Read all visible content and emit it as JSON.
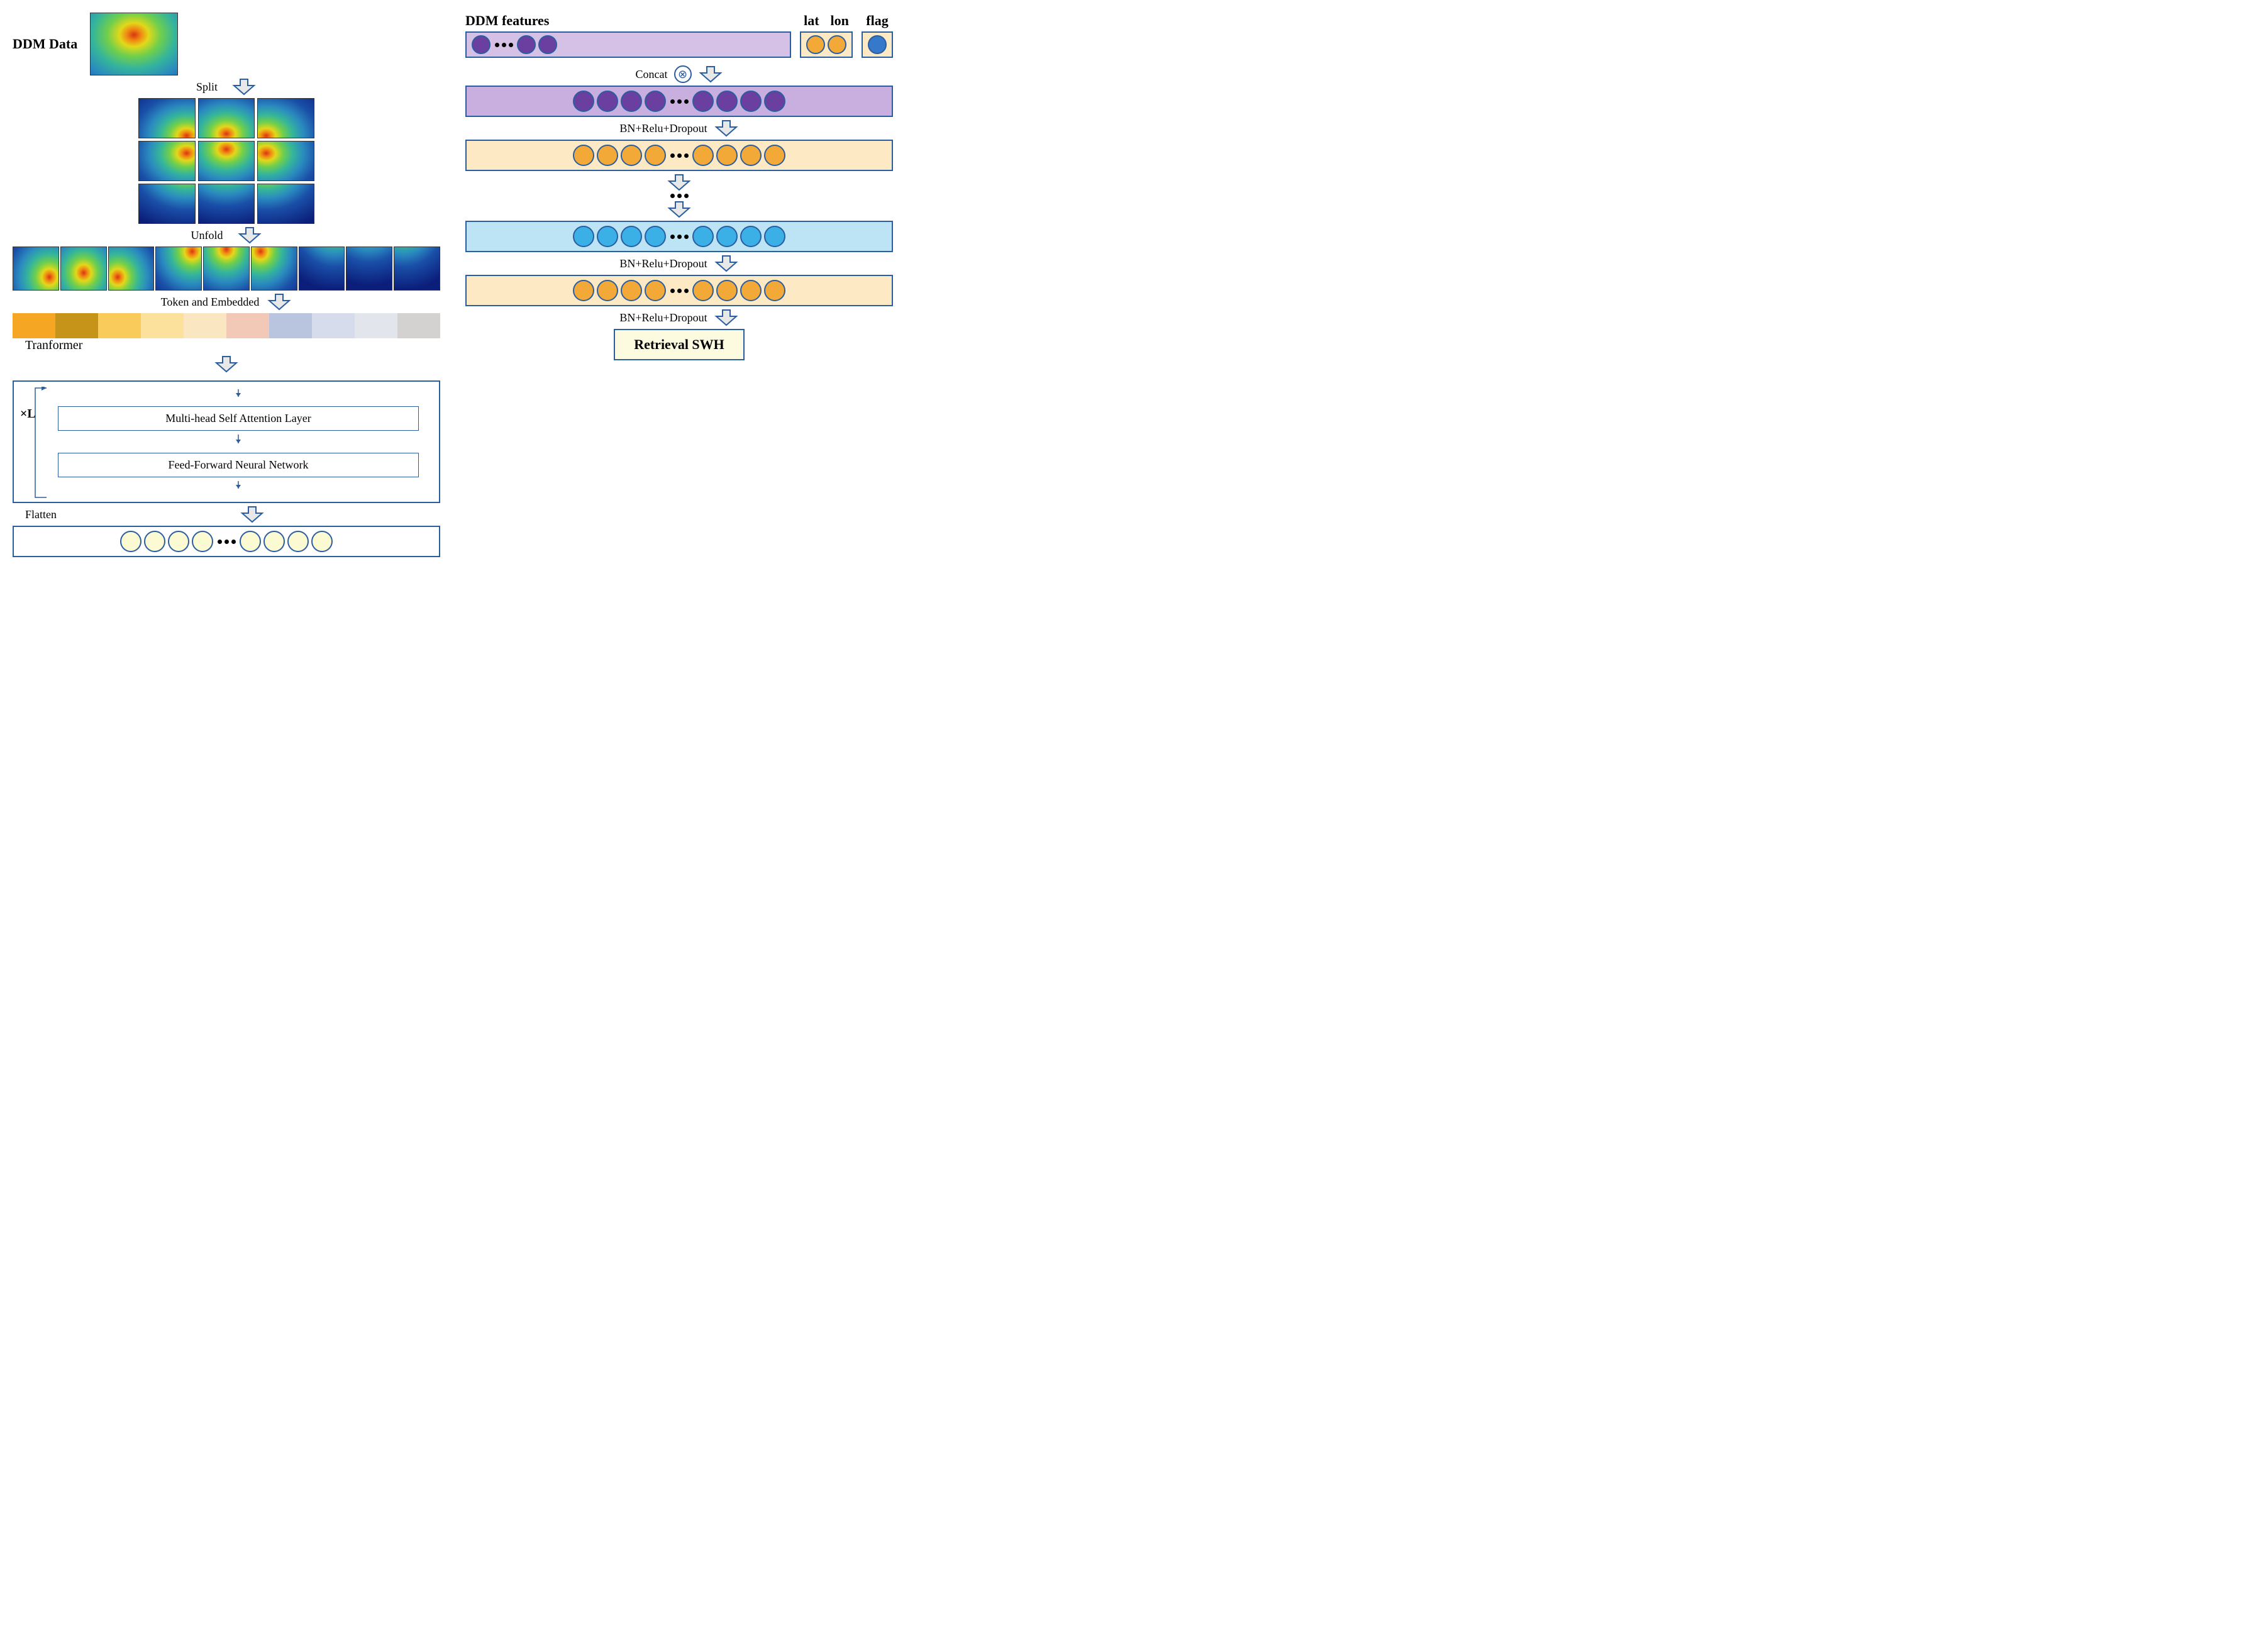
{
  "left": {
    "title": "DDM Data",
    "split_label": "Split",
    "unfold_label": "Unfold",
    "token_label": "Token and Embedded",
    "transformer_label": "Tranformer",
    "xl_label": "×L",
    "layer1": "Multi-head Self Attention Layer",
    "layer2": "Feed-Forward Neural Network",
    "flatten_label": "Flatten",
    "token_colors": [
      "#f5a623",
      "#c59418",
      "#f9cb5a",
      "#fbe19b",
      "#fbe6c2",
      "#f2c9b7",
      "#b9c4de",
      "#d6dceb",
      "#e2e5ec",
      "#d3d2d1"
    ],
    "flatten_circle_fill": "#fbfad3",
    "heatmap": {
      "bg_stops": [
        "#0b1e7a",
        "#1a4fa8",
        "#2a8abf",
        "#35b59b",
        "#6fcf4c",
        "#e2d81a",
        "#f08a12",
        "#d93412"
      ],
      "grid_rows": 3,
      "grid_cols": 3,
      "strip_tiles": 9
    }
  },
  "right": {
    "ddm_feat_label": "DDM  features",
    "lat_label": "lat",
    "lon_label": "lon",
    "flag_label": "flag",
    "concat_label": "Concat",
    "bn_label": "BN+Relu+Dropout",
    "result_label": "Retrieval SWH",
    "colors": {
      "purple_fill": "#6a3fa0",
      "orange_fill": "#f2a938",
      "blue_fill": "#3ab0e6",
      "flag_fill": "#3678c9",
      "concat_bg": "#c9afe0",
      "orange_bg": "#fde9c4",
      "blue_bg": "#bce4f5",
      "ddmf_bg": "#d5c0e6"
    }
  },
  "arrow": {
    "fill": "#e8e8e8",
    "stroke": "#2b5ea0"
  }
}
